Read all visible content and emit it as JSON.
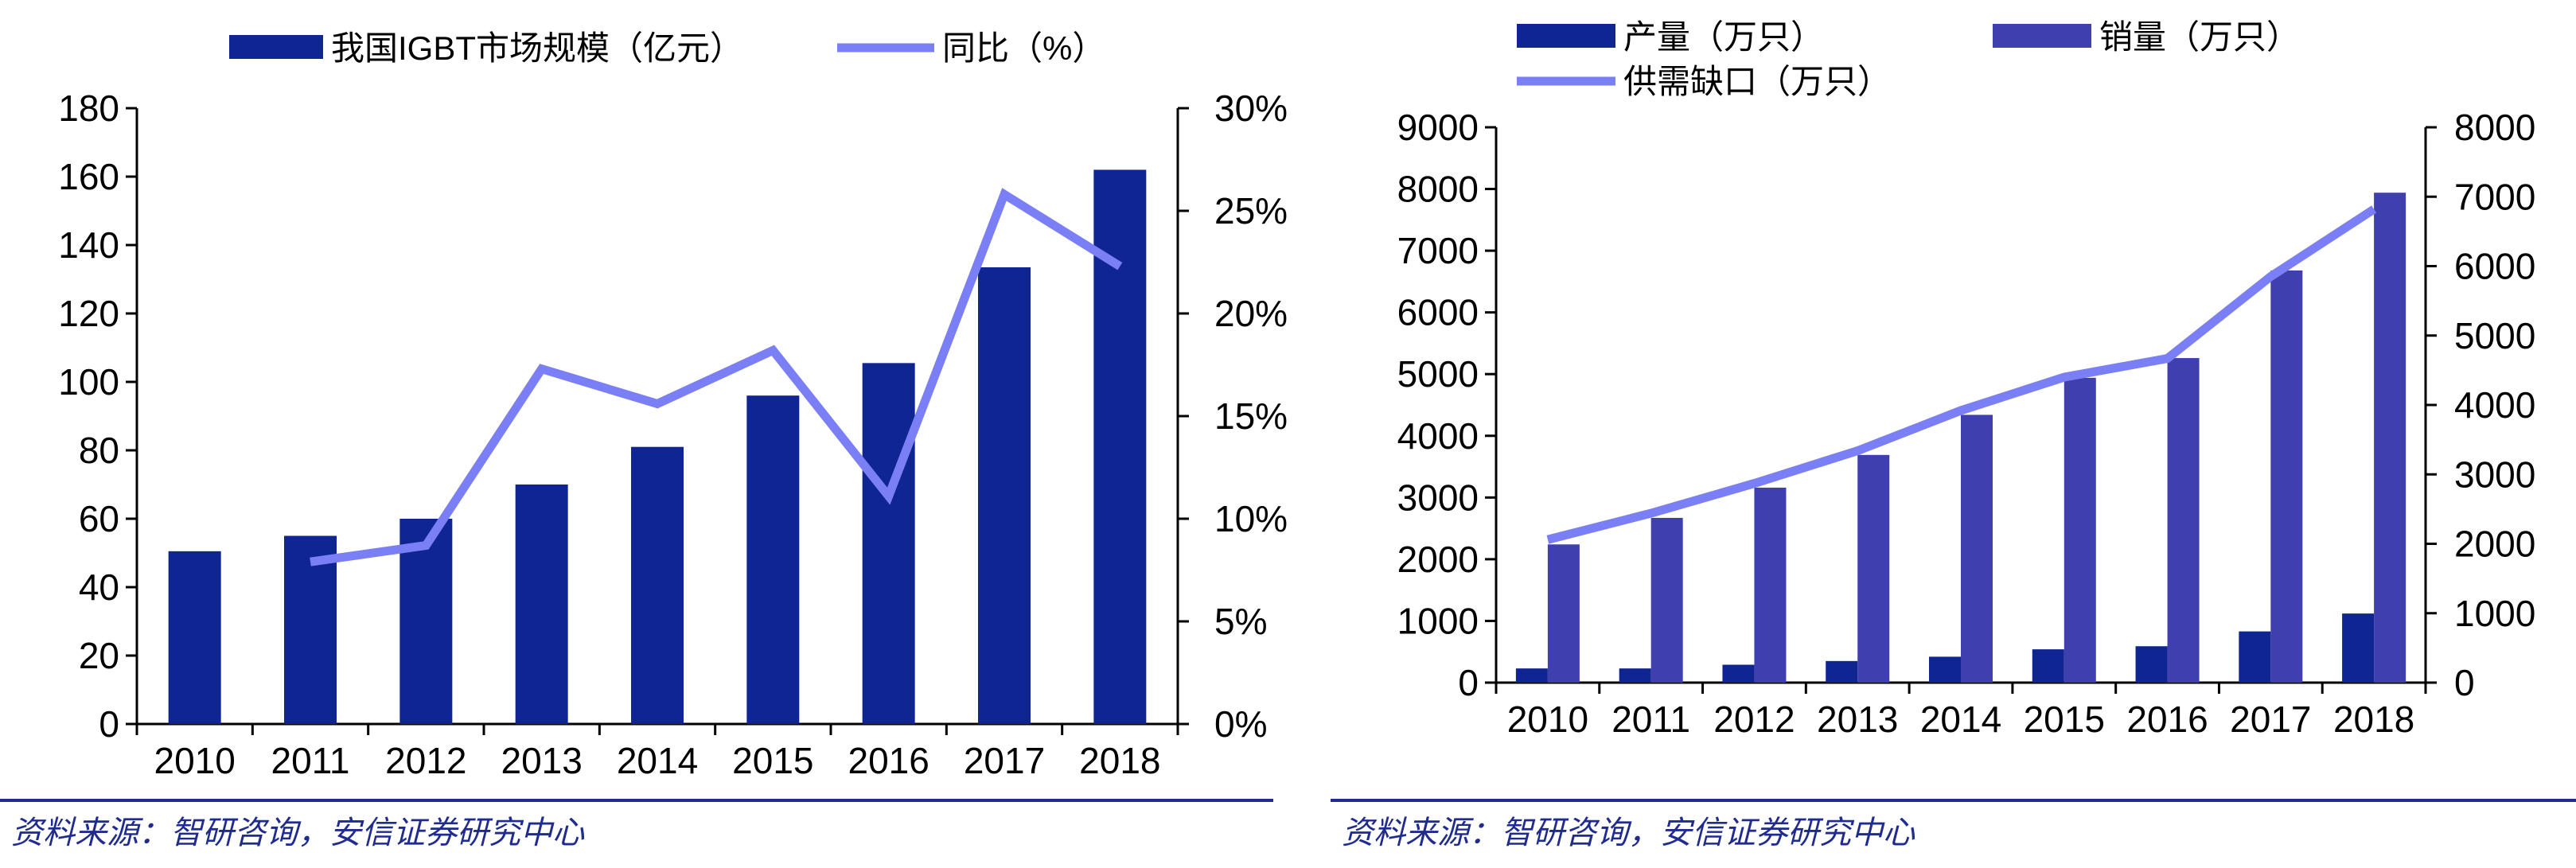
{
  "colors": {
    "bar_dark": "#0f2591",
    "bar_mid": "#3f3fb0",
    "line": "#7b7ff5",
    "text": "#000000",
    "source": "#1f2b8f"
  },
  "chart_data": [
    {
      "type": "bar",
      "categories": [
        "2010",
        "2011",
        "2012",
        "2013",
        "2014",
        "2015",
        "2016",
        "2017",
        "2018"
      ],
      "series": [
        {
          "name": "我国IGBT市场规模（亿元）",
          "kind": "bar",
          "axis": "left",
          "values": [
            50.5,
            55,
            60,
            70,
            81,
            96,
            105.5,
            133.5,
            162
          ]
        },
        {
          "name": "同比（%）",
          "kind": "line",
          "axis": "right",
          "values": [
            null,
            7.9,
            8.7,
            17.3,
            15.6,
            18.2,
            11.1,
            25.8,
            22.3
          ]
        }
      ],
      "y_left": {
        "min": 0,
        "max": 180,
        "ticks": [
          "0",
          "20",
          "40",
          "60",
          "80",
          "100",
          "120",
          "140",
          "160",
          "180"
        ]
      },
      "y_right": {
        "min": 0,
        "max": 30,
        "ticks": [
          "0%",
          "5%",
          "10%",
          "15%",
          "20%",
          "25%",
          "30%"
        ]
      },
      "legend": "top"
    },
    {
      "type": "bar",
      "categories": [
        "2010",
        "2011",
        "2012",
        "2013",
        "2014",
        "2015",
        "2016",
        "2017",
        "2018"
      ],
      "series": [
        {
          "name": "产量（万只）",
          "kind": "bar",
          "axis": "left",
          "values": [
            230,
            230,
            290,
            350,
            420,
            540,
            590,
            830,
            1120
          ]
        },
        {
          "name": "销量（万只）",
          "kind": "bar",
          "axis": "left",
          "values": [
            2240,
            2670,
            3160,
            3690,
            4340,
            4940,
            5260,
            6680,
            7940
          ]
        },
        {
          "name": "供需缺口（万只）",
          "kind": "line",
          "axis": "right",
          "values": [
            2060,
            2440,
            2870,
            3340,
            3920,
            4400,
            4670,
            5850,
            6820
          ]
        }
      ],
      "y_left": {
        "min": 0,
        "max": 9000,
        "ticks": [
          "0",
          "1000",
          "2000",
          "3000",
          "4000",
          "5000",
          "6000",
          "7000",
          "8000",
          "9000"
        ]
      },
      "y_right": {
        "min": 0,
        "max": 8000,
        "ticks": [
          "0",
          "1000",
          "2000",
          "3000",
          "4000",
          "5000",
          "6000",
          "7000",
          "8000"
        ]
      },
      "legend": "top"
    }
  ],
  "sources": {
    "left": "资料来源：智研咨询，安信证券研究中心",
    "right": "资料来源：智研咨询，安信证券研究中心"
  }
}
